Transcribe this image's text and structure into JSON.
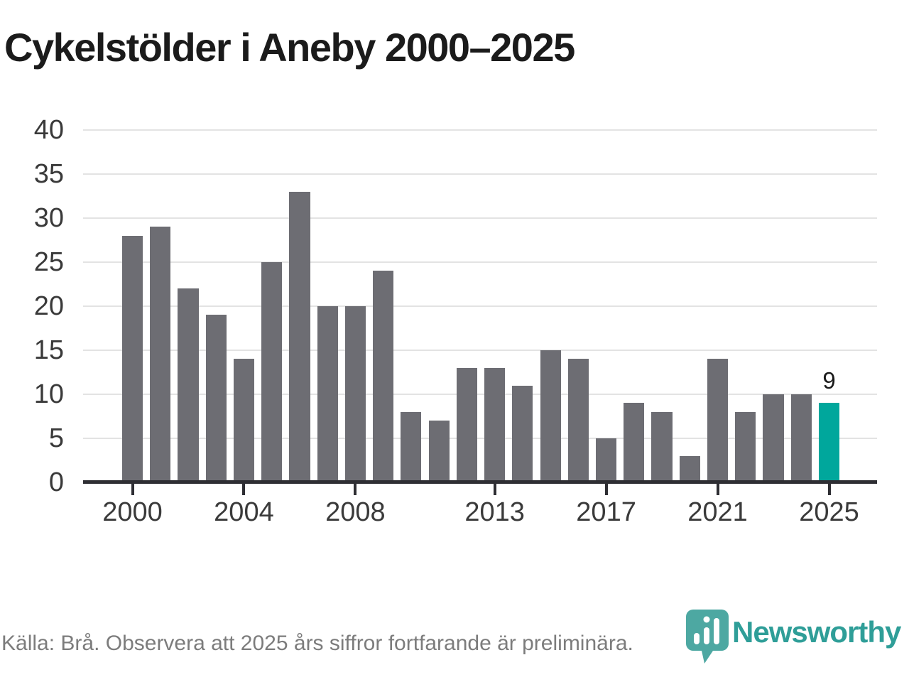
{
  "title": "Cykelstölder i Aneby 2000–2025",
  "chart_data": {
    "type": "bar",
    "title": "Cykelstölder i Aneby 2000–2025",
    "x": [
      2000,
      2001,
      2002,
      2003,
      2004,
      2005,
      2006,
      2007,
      2008,
      2009,
      2010,
      2011,
      2012,
      2013,
      2014,
      2015,
      2016,
      2017,
      2018,
      2019,
      2020,
      2021,
      2022,
      2023,
      2024,
      2025
    ],
    "values": [
      28,
      29,
      22,
      19,
      14,
      25,
      33,
      20,
      20,
      24,
      8,
      7,
      13,
      13,
      11,
      15,
      14,
      5,
      9,
      8,
      3,
      14,
      8,
      10,
      10,
      9
    ],
    "highlight_index": 25,
    "highlight_label": "9",
    "xlabel": "",
    "ylabel": "",
    "ylim": [
      0,
      40
    ],
    "ytick_step": 5,
    "yticks": [
      0,
      5,
      10,
      15,
      20,
      25,
      30,
      35,
      40
    ],
    "xticks": [
      2000,
      2004,
      2008,
      2013,
      2017,
      2021,
      2025
    ],
    "grid": true,
    "legend": "none",
    "bar_color": "#6d6d73",
    "highlight_color": "#00a79c"
  },
  "colors": {
    "background": "#ffffff",
    "bar": "#6d6d73",
    "highlight": "#00a79c",
    "gridline": "#e3e3e3",
    "axis": "#2e2e33",
    "tick_text": "#3a3a3a",
    "title_text": "#1b1b1b",
    "footer_text": "#7c7c7c",
    "brand_teal": "#2f9e98",
    "logo_pin": "#4da8a2"
  },
  "footer": {
    "source": "Källa: Brå. Observera att 2025 års siffror fortfarande är preliminära.",
    "brand": "Newsworthy"
  }
}
